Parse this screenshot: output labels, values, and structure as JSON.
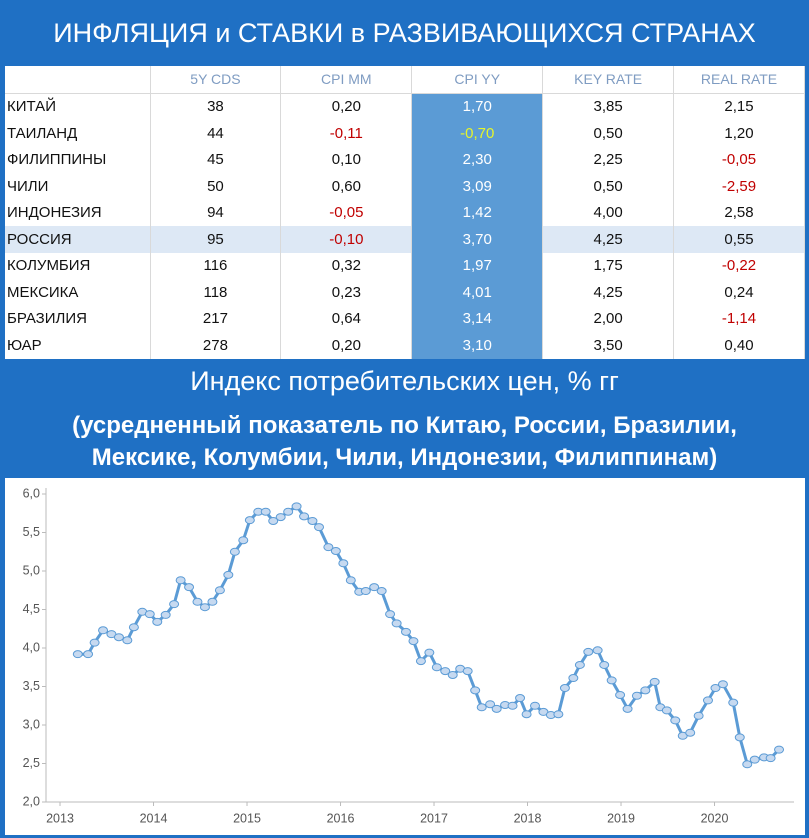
{
  "header": {
    "title": "ИНФЛЯЦИЯ и СТАВКИ в РАЗВИВАЮЩИХСЯ СТРАНАХ"
  },
  "table": {
    "columns": [
      "5Y CDS",
      "CPI MM",
      "CPI YY",
      "KEY RATE",
      "REAL RATE"
    ],
    "rows": [
      [
        "КИТАЙ",
        "38",
        "0,20",
        "1,70",
        "3,85",
        "2,15"
      ],
      [
        "ТАИЛАНД",
        "44",
        "-0,11",
        "-0,70",
        "0,50",
        "1,20"
      ],
      [
        "ФИЛИППИНЫ",
        "45",
        "0,10",
        "2,30",
        "2,25",
        "-0,05"
      ],
      [
        "ЧИЛИ",
        "50",
        "0,60",
        "3,09",
        "0,50",
        "-2,59"
      ],
      [
        "ИНДОНЕЗИЯ",
        "94",
        "-0,05",
        "1,42",
        "4,00",
        "2,58"
      ],
      [
        "РОССИЯ",
        "95",
        "-0,10",
        "3,70",
        "4,25",
        "0,55"
      ],
      [
        "КОЛУМБИЯ",
        "116",
        "0,32",
        "1,97",
        "1,75",
        "-0,22"
      ],
      [
        "МЕКСИКА",
        "118",
        "0,23",
        "4,01",
        "4,25",
        "0,24"
      ],
      [
        "БРАЗИЛИЯ",
        "217",
        "0,64",
        "3,14",
        "2,00",
        "-1,14"
      ],
      [
        "ЮАР",
        "278",
        "0,20",
        "3,10",
        "3,50",
        "0,40"
      ]
    ]
  },
  "chart_data": {
    "type": "line",
    "title": "Индекс потребительских цен, % гг",
    "subtitle": "(усредненный показатель по Китаю, России, Бразилии, Мексике, Колумбии, Чили, Индонезии, Филиппинам)",
    "color": "#5b9bd5",
    "x": [
      2013.19,
      2013.3,
      2013.37,
      2013.46,
      2013.55,
      2013.63,
      2013.72,
      2013.79,
      2013.88,
      2013.96,
      2014.04,
      2014.13,
      2014.22,
      2014.29,
      2014.38,
      2014.47,
      2014.55,
      2014.63,
      2014.71,
      2014.8,
      2014.87,
      2014.96,
      2015.03,
      2015.12,
      2015.2,
      2015.28,
      2015.36,
      2015.44,
      2015.53,
      2015.61,
      2015.7,
      2015.77,
      2015.87,
      2015.95,
      2016.03,
      2016.11,
      2016.2,
      2016.27,
      2016.36,
      2016.44,
      2016.53,
      2016.6,
      2016.7,
      2016.78,
      2016.86,
      2016.95,
      2017.03,
      2017.12,
      2017.2,
      2017.28,
      2017.36,
      2017.44,
      2017.51,
      2017.6,
      2017.67,
      2017.76,
      2017.84,
      2017.92,
      2017.99,
      2018.08,
      2018.17,
      2018.25,
      2018.33,
      2018.4,
      2018.49,
      2018.56,
      2018.65,
      2018.75,
      2018.82,
      2018.9,
      2018.99,
      2019.07,
      2019.17,
      2019.26,
      2019.36,
      2019.42,
      2019.49,
      2019.58,
      2019.66,
      2019.74,
      2019.83,
      2019.93,
      2020.01,
      2020.09,
      2020.2,
      2020.27,
      2020.35,
      2020.43,
      2020.53,
      2020.6,
      2020.69
    ],
    "values": [
      3.92,
      3.92,
      4.07,
      4.23,
      4.18,
      4.14,
      4.1,
      4.27,
      4.47,
      4.44,
      4.34,
      4.43,
      4.57,
      4.88,
      4.79,
      4.6,
      4.53,
      4.6,
      4.75,
      4.95,
      5.25,
      5.4,
      5.66,
      5.77,
      5.77,
      5.65,
      5.7,
      5.77,
      5.84,
      5.71,
      5.65,
      5.57,
      5.31,
      5.26,
      5.1,
      4.88,
      4.73,
      4.74,
      4.79,
      4.74,
      4.44,
      4.32,
      4.21,
      4.09,
      3.83,
      3.94,
      3.75,
      3.7,
      3.65,
      3.73,
      3.7,
      3.45,
      3.23,
      3.27,
      3.21,
      3.26,
      3.25,
      3.35,
      3.14,
      3.25,
      3.17,
      3.13,
      3.14,
      3.48,
      3.61,
      3.78,
      3.95,
      3.97,
      3.78,
      3.58,
      3.39,
      3.21,
      3.38,
      3.45,
      3.56,
      3.23,
      3.19,
      3.06,
      2.86,
      2.9,
      3.12,
      3.32,
      3.48,
      3.53,
      3.29,
      2.84,
      2.49,
      2.55,
      2.58,
      2.57,
      2.68
    ],
    "xlim": [
      2012.85,
      2020.85
    ],
    "xticks": [
      2013,
      2014,
      2015,
      2016,
      2017,
      2018,
      2019,
      2020
    ],
    "ylim": [
      2,
      6
    ],
    "yticks": [
      {
        "value": 2,
        "label": "2,0"
      },
      {
        "value": 2.5,
        "label": "2,5"
      },
      {
        "value": 3,
        "label": "3,0"
      },
      {
        "value": 3.5,
        "label": "3,5"
      },
      {
        "value": 4,
        "label": "4,0"
      },
      {
        "value": 4.5,
        "label": "4,5"
      },
      {
        "value": 5,
        "label": "5,0"
      },
      {
        "value": 5.5,
        "label": "5,5"
      },
      {
        "value": 6,
        "label": "6,0"
      }
    ]
  }
}
